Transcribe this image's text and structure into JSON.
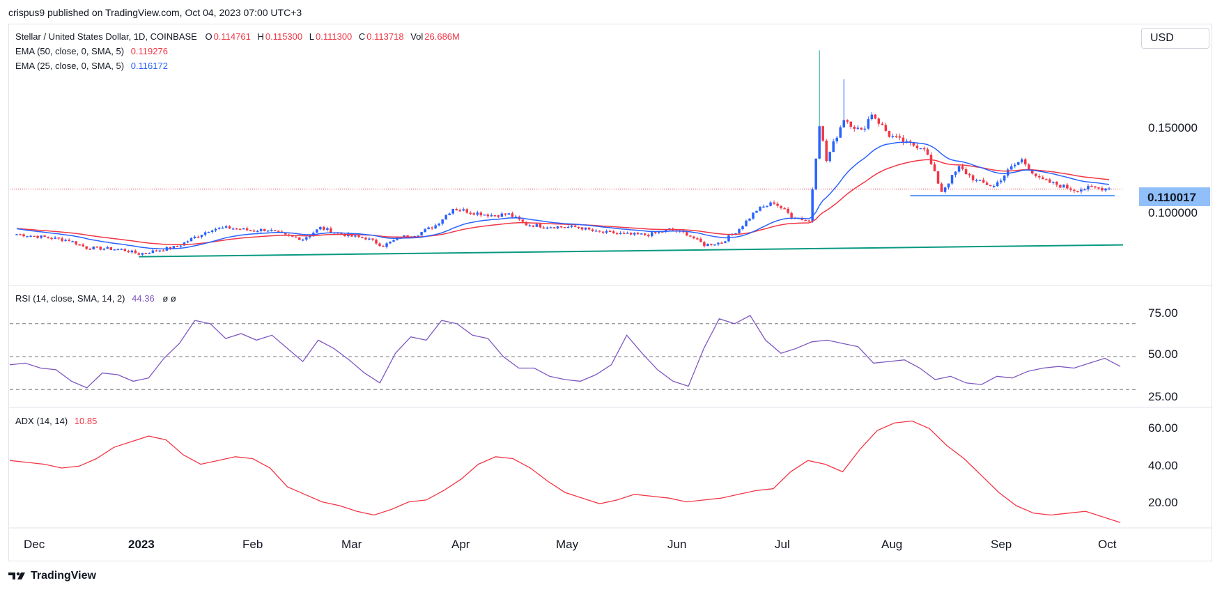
{
  "header": {
    "published_text": "crispus9 published on TradingView.com, Oct 04, 2023 07:00 UTC+3"
  },
  "currency_button": "USD",
  "legend": {
    "symbol": "Stellar / United States Dollar, 1D, COINBASE",
    "o_label": "O",
    "o_value": "0.114761",
    "h_label": "H",
    "h_value": "0.115300",
    "l_label": "L",
    "l_value": "0.111300",
    "c_label": "C",
    "c_value": "0.113718",
    "vol_label": "Vol",
    "vol_value": "26.686M",
    "ema50_label": "EMA (50, close, 0, SMA, 5)",
    "ema50_value": "0.119276",
    "ema25_label": "EMA (25, close, 0, SMA, 5)",
    "ema25_value": "0.116172",
    "rsi_label": "RSI (14, close, SMA, 14, 2)",
    "rsi_value": "44.36",
    "rsi_extra": "ø  ø",
    "adx_label": "ADX (14, 14)",
    "adx_value": "10.85"
  },
  "footer": {
    "logo_text": "TradingView"
  },
  "colors": {
    "up": "#2962ff",
    "down": "#f23645",
    "ema50": "#f23645",
    "ema25": "#2962ff",
    "trendline": "#089981",
    "support": "#5b9cf6",
    "rsi": "#7e57c2",
    "adx": "#f23645",
    "price_tag": "#90bff9"
  },
  "chart_data": [
    {
      "type": "candlestick",
      "title": "Stellar / United States Dollar, 1D, COINBASE",
      "x_tick_labels": [
        "Dec",
        "2023",
        "Feb",
        "Mar",
        "Apr",
        "May",
        "Jun",
        "Jul",
        "Aug",
        "Sep",
        "Oct"
      ],
      "y_tick_labels": [
        "0.150000",
        "0.100000"
      ],
      "current_price_label": "0.110017",
      "close_series": [
        {
          "date": "2022-11-25",
          "close": 0.0868
        },
        {
          "date": "2022-12-01",
          "close": 0.0855
        },
        {
          "date": "2022-12-05",
          "close": 0.0845
        },
        {
          "date": "2022-12-10",
          "close": 0.0832
        },
        {
          "date": "2022-12-15",
          "close": 0.0788
        },
        {
          "date": "2022-12-20",
          "close": 0.0783
        },
        {
          "date": "2022-12-25",
          "close": 0.0778
        },
        {
          "date": "2022-12-30",
          "close": 0.0752
        },
        {
          "date": "2023-01-05",
          "close": 0.0775
        },
        {
          "date": "2023-01-10",
          "close": 0.0795
        },
        {
          "date": "2023-01-15",
          "close": 0.085
        },
        {
          "date": "2023-01-20",
          "close": 0.09
        },
        {
          "date": "2023-01-25",
          "close": 0.0905
        },
        {
          "date": "2023-01-31",
          "close": 0.089
        },
        {
          "date": "2023-02-05",
          "close": 0.0895
        },
        {
          "date": "2023-02-10",
          "close": 0.0858
        },
        {
          "date": "2023-02-15",
          "close": 0.084
        },
        {
          "date": "2023-02-20",
          "close": 0.0905
        },
        {
          "date": "2023-02-25",
          "close": 0.0875
        },
        {
          "date": "2023-03-01",
          "close": 0.0855
        },
        {
          "date": "2023-03-05",
          "close": 0.0845
        },
        {
          "date": "2023-03-10",
          "close": 0.08
        },
        {
          "date": "2023-03-15",
          "close": 0.085
        },
        {
          "date": "2023-03-20",
          "close": 0.087
        },
        {
          "date": "2023-03-25",
          "close": 0.092
        },
        {
          "date": "2023-03-30",
          "close": 0.102
        },
        {
          "date": "2023-04-05",
          "close": 0.0995
        },
        {
          "date": "2023-04-10",
          "close": 0.098
        },
        {
          "date": "2023-04-15",
          "close": 0.0985
        },
        {
          "date": "2023-04-20",
          "close": 0.0925
        },
        {
          "date": "2023-04-25",
          "close": 0.0915
        },
        {
          "date": "2023-05-01",
          "close": 0.091
        },
        {
          "date": "2023-05-05",
          "close": 0.091
        },
        {
          "date": "2023-05-10",
          "close": 0.088
        },
        {
          "date": "2023-05-15",
          "close": 0.0875
        },
        {
          "date": "2023-05-20",
          "close": 0.0865
        },
        {
          "date": "2023-05-25",
          "close": 0.0865
        },
        {
          "date": "2023-05-31",
          "close": 0.0895
        },
        {
          "date": "2023-06-05",
          "close": 0.087
        },
        {
          "date": "2023-06-10",
          "close": 0.0805
        },
        {
          "date": "2023-06-15",
          "close": 0.082
        },
        {
          "date": "2023-06-20",
          "close": 0.09
        },
        {
          "date": "2023-06-25",
          "close": 0.101
        },
        {
          "date": "2023-06-30",
          "close": 0.1055
        },
        {
          "date": "2023-07-05",
          "close": 0.0975
        },
        {
          "date": "2023-07-10",
          "close": 0.0945
        },
        {
          "date": "2023-07-13",
          "close": 0.152
        },
        {
          "date": "2023-07-15",
          "close": 0.13
        },
        {
          "date": "2023-07-20",
          "close": 0.155
        },
        {
          "date": "2023-07-25",
          "close": 0.147
        },
        {
          "date": "2023-07-28",
          "close": 0.158
        },
        {
          "date": "2023-08-02",
          "close": 0.145
        },
        {
          "date": "2023-08-07",
          "close": 0.14
        },
        {
          "date": "2023-08-12",
          "close": 0.138
        },
        {
          "date": "2023-08-17",
          "close": 0.112
        },
        {
          "date": "2023-08-22",
          "close": 0.126
        },
        {
          "date": "2023-08-27",
          "close": 0.118
        },
        {
          "date": "2023-09-01",
          "close": 0.115
        },
        {
          "date": "2023-09-06",
          "close": 0.126
        },
        {
          "date": "2023-09-09",
          "close": 0.1305
        },
        {
          "date": "2023-09-14",
          "close": 0.119
        },
        {
          "date": "2023-09-19",
          "close": 0.116
        },
        {
          "date": "2023-09-24",
          "close": 0.113
        },
        {
          "date": "2023-09-29",
          "close": 0.114
        },
        {
          "date": "2023-10-04",
          "close": 0.1137
        }
      ],
      "annotations": [
        "ascending green trendline along lows",
        "horizontal blue support line near 0.110",
        "dotted red last-price line"
      ]
    },
    {
      "type": "line",
      "title": "RSI (14, close, SMA, 14, 2)",
      "y_tick_labels": [
        "75.00",
        "50.00",
        "25.00"
      ],
      "guide_levels": [
        70,
        50,
        30
      ],
      "values": [
        45,
        46,
        43,
        42,
        35,
        31,
        40,
        39,
        35,
        37,
        49,
        58,
        72,
        70,
        61,
        64,
        60,
        63,
        55,
        47,
        60,
        55,
        48,
        40,
        34,
        52,
        62,
        60,
        72,
        70,
        63,
        61,
        50,
        43,
        43,
        38,
        36,
        35,
        39,
        45,
        63,
        52,
        42,
        35,
        32,
        55,
        73,
        70,
        75,
        60,
        52,
        55,
        59,
        60,
        58,
        56,
        46,
        47,
        48,
        43,
        36,
        38,
        34,
        33,
        38,
        37,
        41,
        43,
        44,
        43,
        46,
        49,
        44
      ]
    },
    {
      "type": "line",
      "title": "ADX (14, 14)",
      "y_tick_labels": [
        "60.00",
        "40.00",
        "20.00"
      ],
      "values": [
        44,
        43,
        42,
        40,
        41,
        45,
        51,
        54,
        57,
        55,
        47,
        42,
        44,
        46,
        45,
        40,
        30,
        26,
        22,
        20,
        17,
        15,
        18,
        22,
        23,
        28,
        34,
        42,
        46,
        45,
        40,
        33,
        27,
        24,
        21,
        23,
        26,
        25,
        24,
        22,
        23,
        24,
        26,
        28,
        29,
        38,
        44,
        42,
        38,
        50,
        60,
        64,
        65,
        61,
        52,
        45,
        36,
        27,
        20,
        16,
        15,
        16,
        17,
        14,
        11
      ]
    }
  ]
}
